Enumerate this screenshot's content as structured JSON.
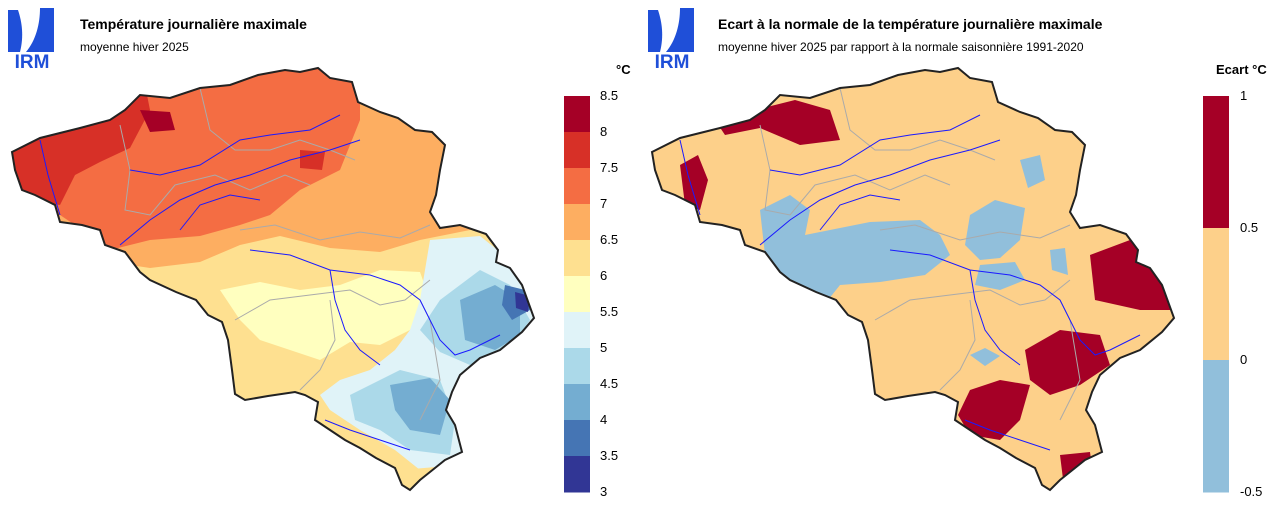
{
  "left": {
    "logo": "IRM",
    "title": "Température journalière maximale",
    "subtitle": "moyenne hiver 2025",
    "unit": "°C",
    "legend": {
      "ticks": [
        "8.5",
        "8",
        "7.5",
        "7",
        "6.5",
        "6",
        "5.5",
        "5",
        "4.5",
        "4",
        "3.5",
        "3"
      ],
      "colors": [
        "#a50026",
        "#d73027",
        "#f46d43",
        "#fdae61",
        "#fee090",
        "#ffffbf",
        "#e0f3f8",
        "#abd9e9",
        "#74add1",
        "#4575b4",
        "#313695"
      ]
    }
  },
  "right": {
    "logo": "IRM",
    "title": "Ecart à la normale de la température journalière maximale",
    "subtitle": "moyenne hiver 2025 par rapport à la normale saisonnière 1991-2020",
    "unit": "Ecart °C",
    "legend": {
      "ticks": [
        "1",
        "0.5",
        "0",
        "-0.5"
      ],
      "colors": [
        "#a50026",
        "#fdd08a",
        "#91bfdb"
      ]
    }
  },
  "colors": {
    "logo_blue": "#1f4fd8",
    "border": "#222222",
    "river": "#1a1aff",
    "province": "#aaaaaa"
  }
}
